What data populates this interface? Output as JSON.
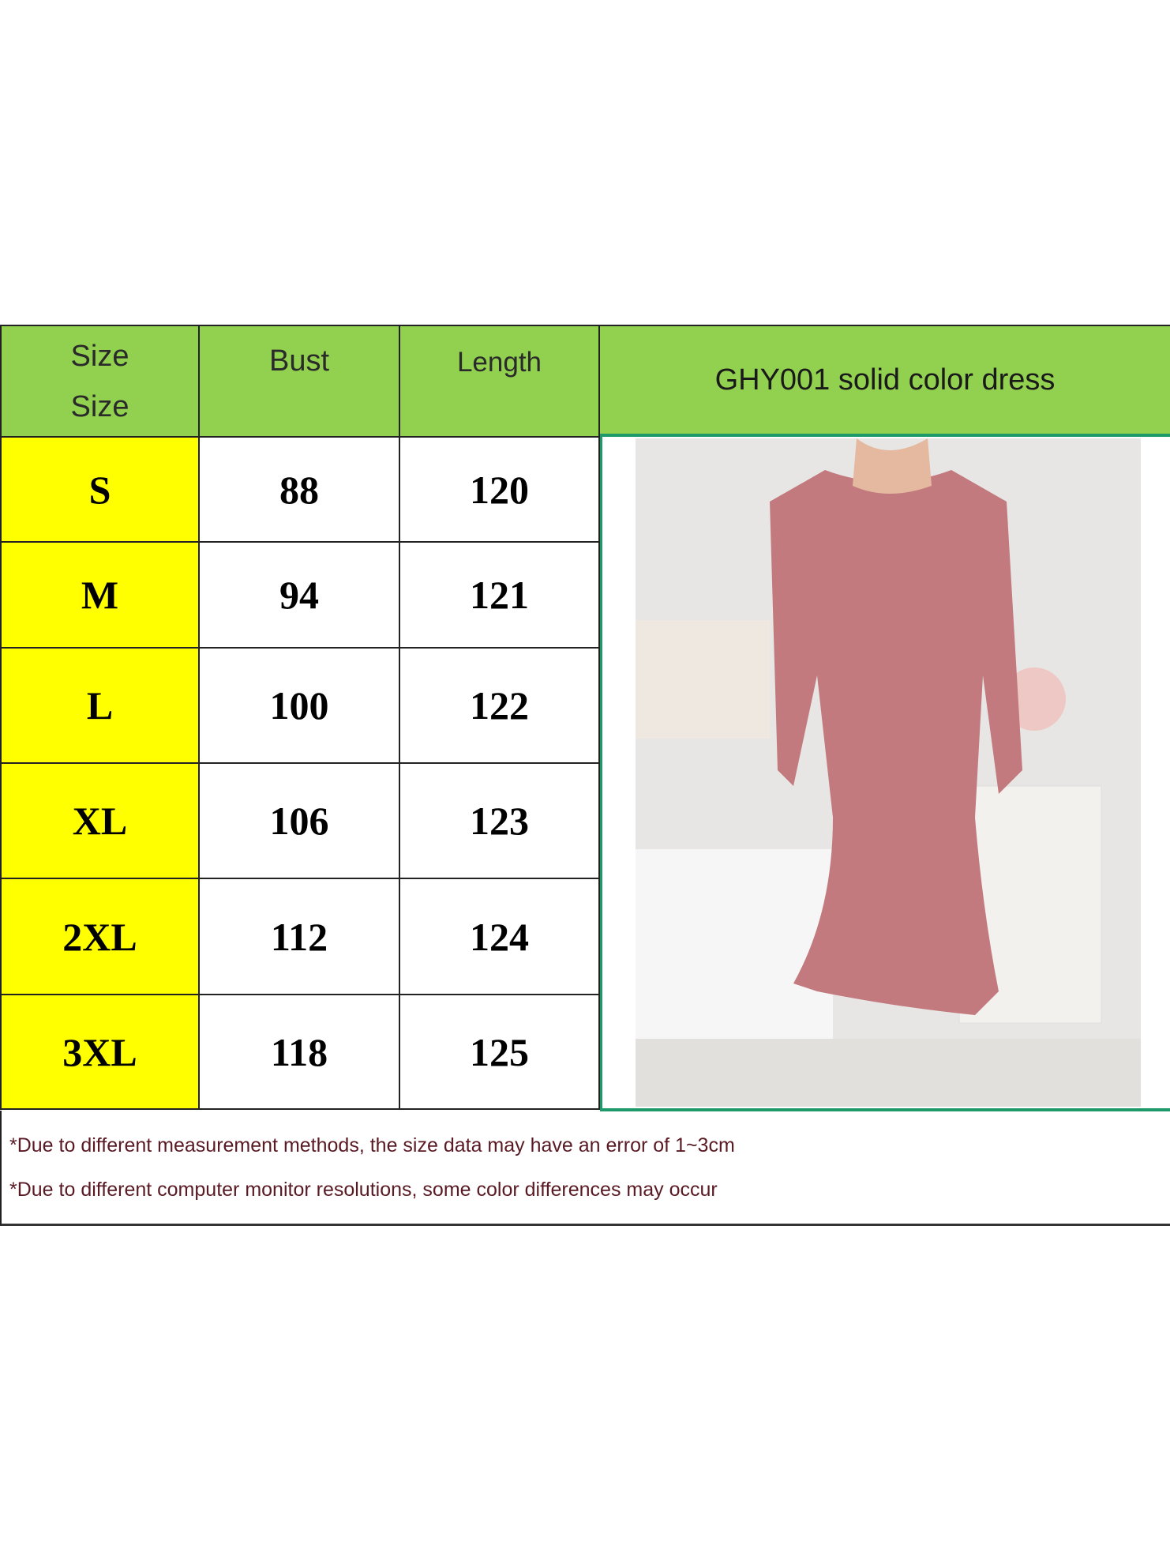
{
  "header": {
    "size_label_1": "Size",
    "size_label_2": "Size",
    "bust_label": "Bust",
    "length_label": "Length",
    "product_title": "GHY001 solid color dress"
  },
  "rows": [
    {
      "size": "S",
      "bust": "88",
      "length": "120"
    },
    {
      "size": "M",
      "bust": "94",
      "length": "121"
    },
    {
      "size": "L",
      "bust": "100",
      "length": "122"
    },
    {
      "size": "XL",
      "bust": "106",
      "length": "123"
    },
    {
      "size": "2XL",
      "bust": "112",
      "length": "124"
    },
    {
      "size": "3XL",
      "bust": "118",
      "length": "125"
    }
  ],
  "notes": [
    "*Due to different measurement methods, the size data may have an error of 1~3cm",
    "*Due to different computer monitor resolutions, some color differences may occur"
  ],
  "colors": {
    "header_bg": "#92d050",
    "size_bg": "#ffff00",
    "photo_border": "#1e9a6a",
    "dress": "#c27a7e"
  }
}
